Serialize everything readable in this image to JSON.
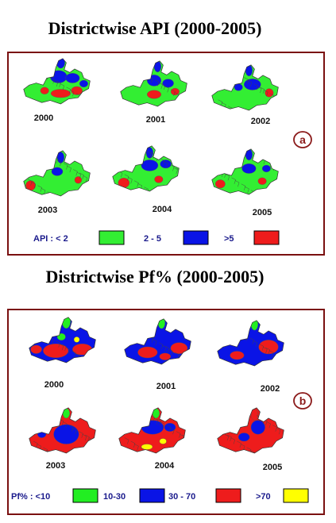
{
  "panels": [
    {
      "title": "Districtwise API (2000-2005)",
      "letter": "a",
      "years": [
        "2000",
        "2001",
        "2002",
        "2003",
        "2004",
        "2005"
      ],
      "legend": [
        {
          "label": "API : < 2",
          "color": "#33ee33"
        },
        {
          "label": "2 - 5",
          "color": "#0a14e6"
        },
        {
          "label": ">5",
          "color": "#ee1c1c"
        }
      ]
    },
    {
      "title": "Districtwise Pf% (2000-2005)",
      "letter": "b",
      "years": [
        "2000",
        "2001",
        "2002",
        "2003",
        "2004",
        "2005"
      ],
      "legend": [
        {
          "label": "Pf% : <10",
          "color": "#22ee22"
        },
        {
          "label": "10-30",
          "color": "#0a14e6"
        },
        {
          "label": "30 - 70",
          "color": "#ee1c1c"
        },
        {
          "label": ">70",
          "color": "#ffff00"
        }
      ]
    }
  ]
}
